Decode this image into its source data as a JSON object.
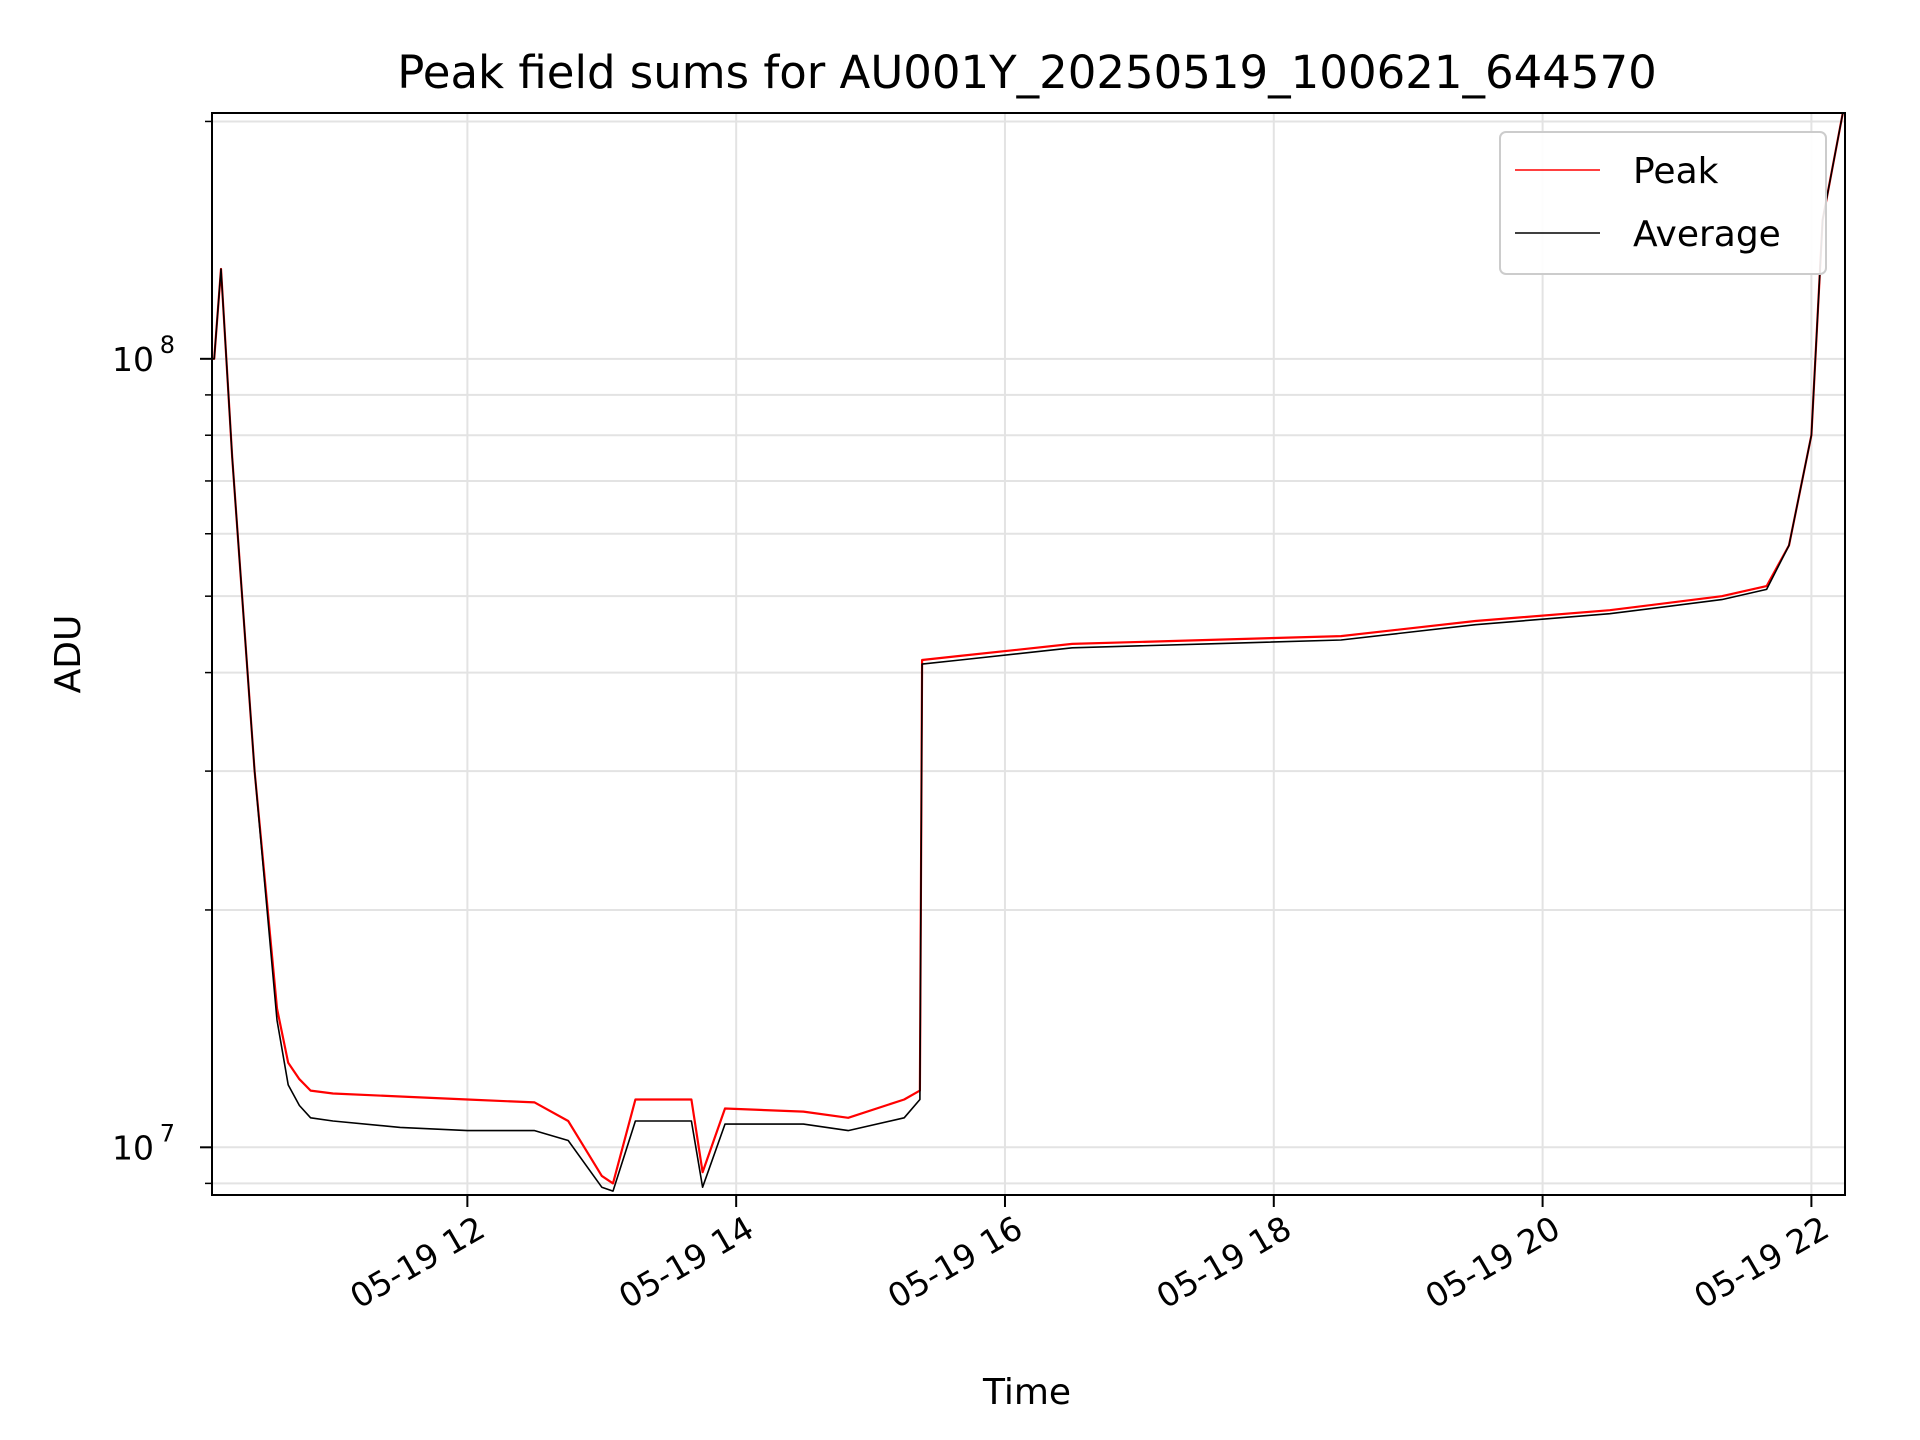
{
  "chart_data": {
    "type": "line",
    "title": "Peak field sums for AU001Y_20250519_100621_644570",
    "xlabel": "Time",
    "ylabel": "ADU",
    "y_scale": "log",
    "ylim": [
      8700000,
      205000000
    ],
    "xlim": [
      "2025-05-19 10:06",
      "2025-05-19 22:15"
    ],
    "x_ticks": [
      "05-19 12",
      "05-19 14",
      "05-19 16",
      "05-19 18",
      "05-19 20",
      "05-19 22"
    ],
    "x_tick_times": [
      "2025-05-19 12:00",
      "2025-05-19 14:00",
      "2025-05-19 16:00",
      "2025-05-19 18:00",
      "2025-05-19 20:00",
      "2025-05-19 22:00"
    ],
    "y_ticks": [
      {
        "label": "10",
        "exponent": "8",
        "value": 100000000
      },
      {
        "label": "10",
        "exponent": "7",
        "value": 10000000
      }
    ],
    "grid": true,
    "legend_position": "top-right",
    "series": [
      {
        "name": "Peak",
        "color": "#ff0000",
        "x": [
          "2025-05-19 10:06",
          "2025-05-19 10:07",
          "2025-05-19 10:10",
          "2025-05-19 10:15",
          "2025-05-19 10:25",
          "2025-05-19 10:35",
          "2025-05-19 10:40",
          "2025-05-19 10:45",
          "2025-05-19 10:50",
          "2025-05-19 11:00",
          "2025-05-19 11:30",
          "2025-05-19 12:00",
          "2025-05-19 12:30",
          "2025-05-19 12:45",
          "2025-05-19 13:00",
          "2025-05-19 13:05",
          "2025-05-19 13:15",
          "2025-05-19 13:40",
          "2025-05-19 13:45",
          "2025-05-19 13:55",
          "2025-05-19 14:30",
          "2025-05-19 14:50",
          "2025-05-19 15:15",
          "2025-05-19 15:22",
          "2025-05-19 15:23",
          "2025-05-19 15:40",
          "2025-05-19 16:30",
          "2025-05-19 17:30",
          "2025-05-19 18:30",
          "2025-05-19 19:30",
          "2025-05-19 20:30",
          "2025-05-19 21:20",
          "2025-05-19 21:40",
          "2025-05-19 21:50",
          "2025-05-19 22:00",
          "2025-05-19 22:05",
          "2025-05-19 22:14"
        ],
        "values": [
          100000000,
          100000000,
          130000000,
          75000000,
          30000000,
          15000000,
          12800000,
          12200000,
          11800000,
          11700000,
          11600000,
          11500000,
          11400000,
          10800000,
          9200000,
          9000000,
          11500000,
          11500000,
          9300000,
          11200000,
          11100000,
          10900000,
          11500000,
          11800000,
          41500000,
          42000000,
          43500000,
          44000000,
          44500000,
          46500000,
          48000000,
          50000000,
          51500000,
          58000000,
          80000000,
          150000000,
          205000000
        ]
      },
      {
        "name": "Average",
        "color": "#000000",
        "x": [
          "2025-05-19 10:06",
          "2025-05-19 10:07",
          "2025-05-19 10:10",
          "2025-05-19 10:15",
          "2025-05-19 10:25",
          "2025-05-19 10:35",
          "2025-05-19 10:40",
          "2025-05-19 10:45",
          "2025-05-19 10:50",
          "2025-05-19 11:00",
          "2025-05-19 11:30",
          "2025-05-19 12:00",
          "2025-05-19 12:30",
          "2025-05-19 12:45",
          "2025-05-19 13:00",
          "2025-05-19 13:05",
          "2025-05-19 13:15",
          "2025-05-19 13:40",
          "2025-05-19 13:45",
          "2025-05-19 13:55",
          "2025-05-19 14:30",
          "2025-05-19 14:50",
          "2025-05-19 15:15",
          "2025-05-19 15:22",
          "2025-05-19 15:23",
          "2025-05-19 15:40",
          "2025-05-19 16:30",
          "2025-05-19 17:30",
          "2025-05-19 18:30",
          "2025-05-19 19:30",
          "2025-05-19 20:30",
          "2025-05-19 21:20",
          "2025-05-19 21:40",
          "2025-05-19 21:50",
          "2025-05-19 22:00",
          "2025-05-19 22:05",
          "2025-05-19 22:14"
        ],
        "values": [
          100000000,
          100000000,
          130000000,
          75000000,
          30000000,
          14500000,
          12000000,
          11300000,
          10900000,
          10800000,
          10600000,
          10500000,
          10500000,
          10200000,
          8900000,
          8800000,
          10800000,
          10800000,
          8900000,
          10700000,
          10700000,
          10500000,
          10900000,
          11500000,
          41000000,
          41500000,
          43000000,
          43500000,
          44000000,
          46000000,
          47500000,
          49500000,
          51000000,
          58000000,
          80000000,
          150000000,
          205000000
        ]
      }
    ]
  }
}
